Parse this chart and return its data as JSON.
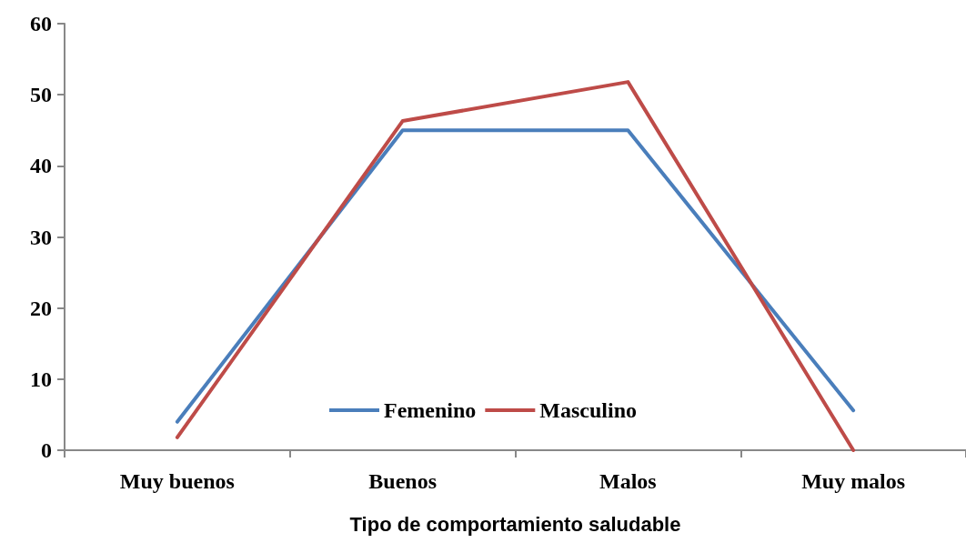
{
  "chart_data": {
    "type": "line",
    "xlabel": "Tipo de comportamiento saludable",
    "categories": [
      "Muy buenos",
      "Buenos",
      "Malos",
      "Muy malos"
    ],
    "series": [
      {
        "name": "Femenino",
        "color": "#4a7ebb",
        "values": [
          4,
          45,
          45,
          5.6
        ]
      },
      {
        "name": "Masculino",
        "color": "#be4b48",
        "values": [
          1.8,
          46.3,
          51.8,
          0
        ]
      }
    ],
    "ylim": [
      0,
      60
    ],
    "yticks": [
      0,
      10,
      20,
      30,
      40,
      50,
      60
    ],
    "grid": false,
    "legend": "bottom",
    "marker": "none",
    "line_style": "solid"
  }
}
